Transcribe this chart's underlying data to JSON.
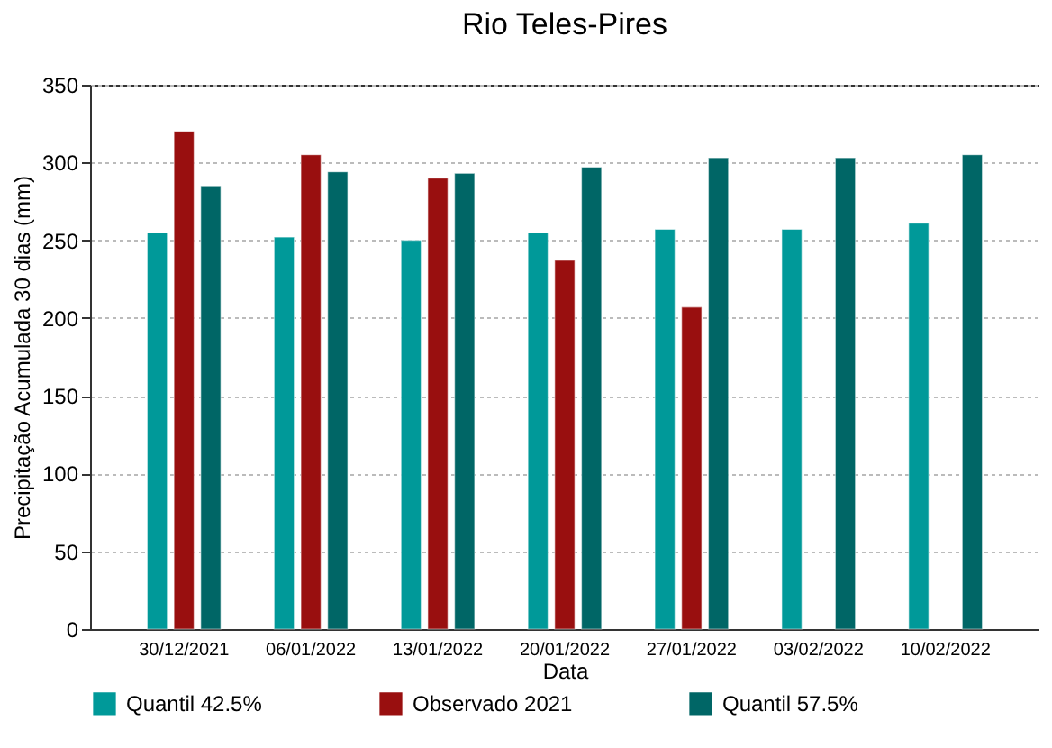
{
  "chart_data": {
    "type": "bar",
    "title": "Rio Teles-Pires",
    "xlabel": "Data",
    "ylabel": "Precipitação Acumulada 30 dias (mm)",
    "categories": [
      "30/12/2021",
      "06/01/2022",
      "13/01/2022",
      "20/01/2022",
      "27/01/2022",
      "03/02/2022",
      "10/02/2022"
    ],
    "series": [
      {
        "name": "Quantil 42.5%",
        "color": "#009999",
        "values": [
          255,
          252,
          250,
          255,
          257,
          257,
          261
        ]
      },
      {
        "name": "Observado 2021",
        "color": "#990f0f",
        "values": [
          320,
          305,
          290,
          237,
          207,
          null,
          null
        ]
      },
      {
        "name": "Quantil 57.5%",
        "color": "#006666",
        "values": [
          285,
          294,
          293,
          297,
          303,
          303,
          305
        ]
      }
    ],
    "ylim": [
      0,
      350
    ],
    "yticks": [
      0,
      50,
      100,
      150,
      200,
      250,
      300,
      350
    ],
    "grid": "y",
    "legend": "bottom"
  }
}
